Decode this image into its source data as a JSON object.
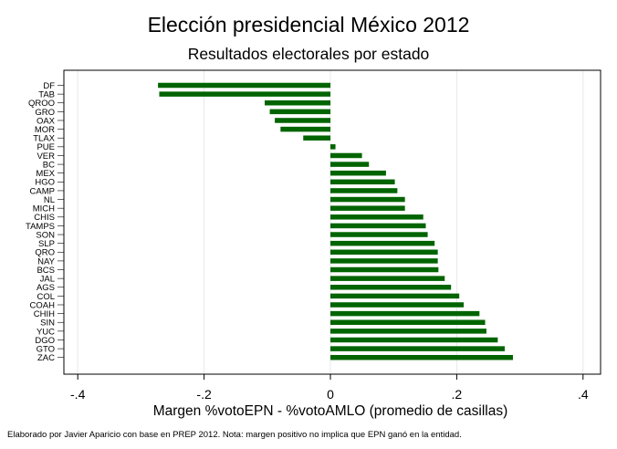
{
  "chart_data": {
    "type": "bar",
    "orientation": "horizontal",
    "title": "Elección presidencial México 2012",
    "subtitle": "Resultados electorales por estado",
    "xlabel": "Margen %votoEPN - %votoAMLO (promedio de casillas)",
    "ylabel": "",
    "xlim": [
      -0.4,
      0.4
    ],
    "xticks": [
      -0.4,
      -0.2,
      0,
      0.2,
      0.4
    ],
    "xtick_labels": [
      "-.4",
      "-.2",
      "0",
      ".2",
      ".4"
    ],
    "grid": "vertical",
    "bar_color": "#006400",
    "categories": [
      "DF",
      "TAB",
      "QROO",
      "GRO",
      "OAX",
      "MOR",
      "TLAX",
      "PUE",
      "VER",
      "BC",
      "MEX",
      "HGO",
      "CAMP",
      "NL",
      "MICH",
      "CHIS",
      "TAMPS",
      "SON",
      "SLP",
      "QRO",
      "NAY",
      "BCS",
      "JAL",
      "AGS",
      "COL",
      "COAH",
      "CHIH",
      "SIN",
      "YUC",
      "DGO",
      "GTO",
      "ZAC"
    ],
    "values": [
      -0.273,
      -0.271,
      -0.104,
      -0.096,
      -0.088,
      -0.079,
      -0.043,
      0.008,
      0.05,
      0.061,
      0.088,
      0.102,
      0.106,
      0.118,
      0.118,
      0.147,
      0.151,
      0.154,
      0.165,
      0.17,
      0.17,
      0.171,
      0.181,
      0.191,
      0.204,
      0.211,
      0.236,
      0.245,
      0.247,
      0.265,
      0.276,
      0.289
    ]
  },
  "footnote": "Elaborado por Javier Aparicio con base en PREP 2012. Nota: margen positivo no implica que EPN ganó en la entidad."
}
